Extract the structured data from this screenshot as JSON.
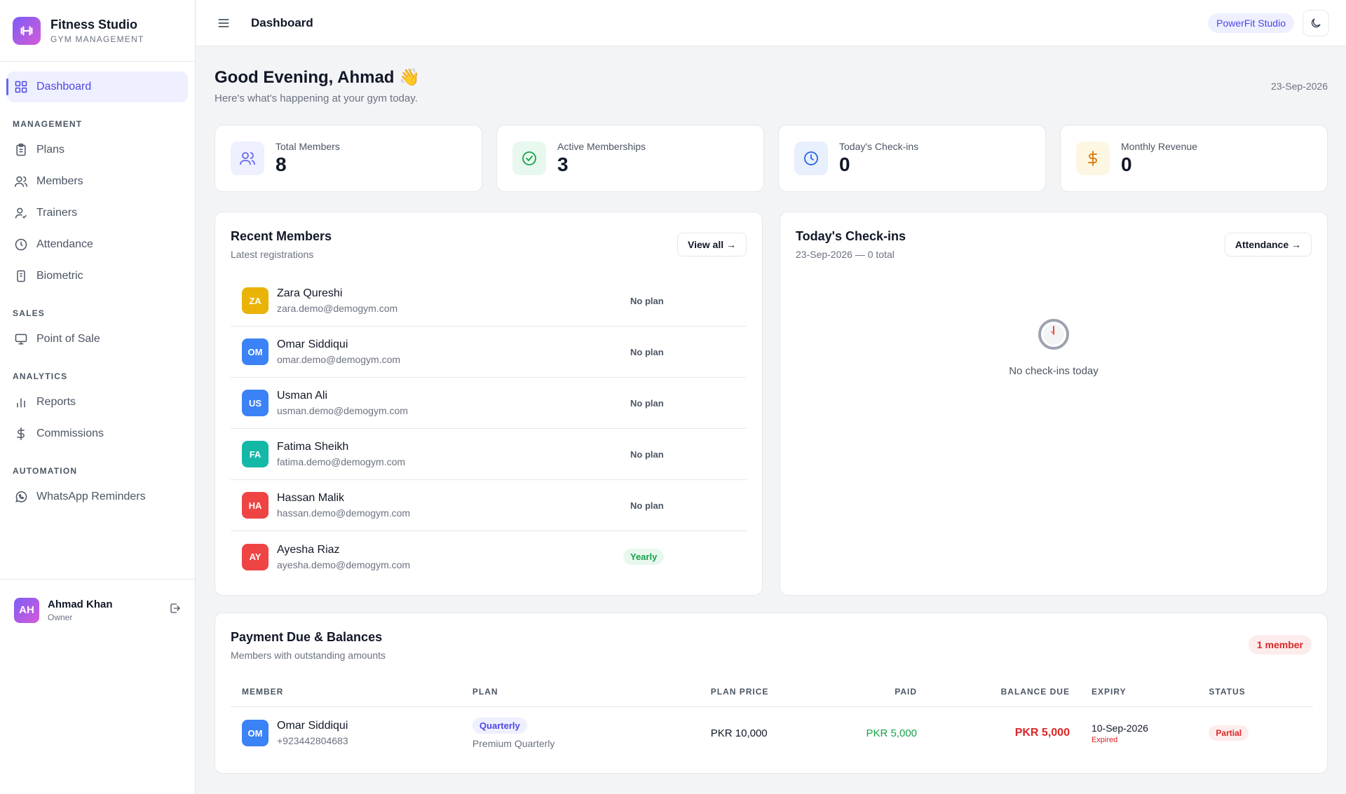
{
  "brand": {
    "title": "Fitness Studio",
    "subtitle": "GYM MANAGEMENT",
    "logo_icon": "dumbbell-icon"
  },
  "nav": {
    "dashboard": "Dashboard",
    "sections": {
      "management": "MANAGEMENT",
      "sales": "SALES",
      "analytics": "ANALYTICS",
      "automation": "AUTOMATION"
    },
    "plans": "Plans",
    "members": "Members",
    "trainers": "Trainers",
    "attendance": "Attendance",
    "biometric": "Biometric",
    "pos": "Point of Sale",
    "reports": "Reports",
    "commissions": "Commissions",
    "whatsapp": "WhatsApp Reminders"
  },
  "user": {
    "initials": "AH",
    "name": "Ahmad Khan",
    "role": "Owner"
  },
  "topbar": {
    "title": "Dashboard",
    "studio": "PowerFit Studio"
  },
  "greeting": {
    "title": "Good Evening, Ahmad 👋",
    "subtitle": "Here's what's happening at your gym today.",
    "date": "23-Sep-2026"
  },
  "stats": [
    {
      "label": "Total Members",
      "value": "8",
      "icon": "users-icon",
      "color": "#6366f1",
      "bg": "#eef0ff"
    },
    {
      "label": "Active Memberships",
      "value": "3",
      "icon": "check-circle-icon",
      "color": "#16a34a",
      "bg": "#e8f8ee"
    },
    {
      "label": "Today's Check-ins",
      "value": "0",
      "icon": "clock-icon",
      "color": "#2563eb",
      "bg": "#e8effd"
    },
    {
      "label": "Monthly Revenue",
      "value": "0",
      "icon": "dollar-icon",
      "color": "#d97706",
      "bg": "#fdf6e3"
    }
  ],
  "recent": {
    "title": "Recent Members",
    "subtitle": "Latest registrations",
    "button": "View all →",
    "members": [
      {
        "initials": "ZA",
        "name": "Zara Qureshi",
        "email": "zara.demo@demogym.com",
        "plan": "No plan",
        "color": "#eab308"
      },
      {
        "initials": "OM",
        "name": "Omar Siddiqui",
        "email": "omar.demo@demogym.com",
        "plan": "No plan",
        "color": "#3b82f6"
      },
      {
        "initials": "US",
        "name": "Usman Ali",
        "email": "usman.demo@demogym.com",
        "plan": "No plan",
        "color": "#3b82f6"
      },
      {
        "initials": "FA",
        "name": "Fatima Sheikh",
        "email": "fatima.demo@demogym.com",
        "plan": "No plan",
        "color": "#14b8a6"
      },
      {
        "initials": "HA",
        "name": "Hassan Malik",
        "email": "hassan.demo@demogym.com",
        "plan": "No plan",
        "color": "#ef4444"
      },
      {
        "initials": "AY",
        "name": "Ayesha Riaz",
        "email": "ayesha.demo@demogym.com",
        "plan": "Yearly",
        "color": "#ef4444"
      }
    ]
  },
  "checkins": {
    "title": "Today's Check-ins",
    "subtitle": "23-Sep-2026 — 0 total",
    "button": "Attendance →",
    "empty": "No check-ins today"
  },
  "payment": {
    "title": "Payment Due & Balances",
    "subtitle": "Members with outstanding amounts",
    "badge": "1 member",
    "columns": [
      "MEMBER",
      "PLAN",
      "PLAN PRICE",
      "PAID",
      "BALANCE DUE",
      "EXPIRY",
      "STATUS"
    ],
    "rows": [
      {
        "initials": "OM",
        "name": "Omar Siddiqui",
        "phone": "+923442804683",
        "plan_type": "Quarterly",
        "plan_name": "Premium Quarterly",
        "price": "PKR 10,000",
        "paid": "PKR 5,000",
        "due": "PKR 5,000",
        "expiry": "10-Sep-2026",
        "expiry_status": "Expired",
        "status": "Partial",
        "color": "#3b82f6"
      }
    ]
  }
}
